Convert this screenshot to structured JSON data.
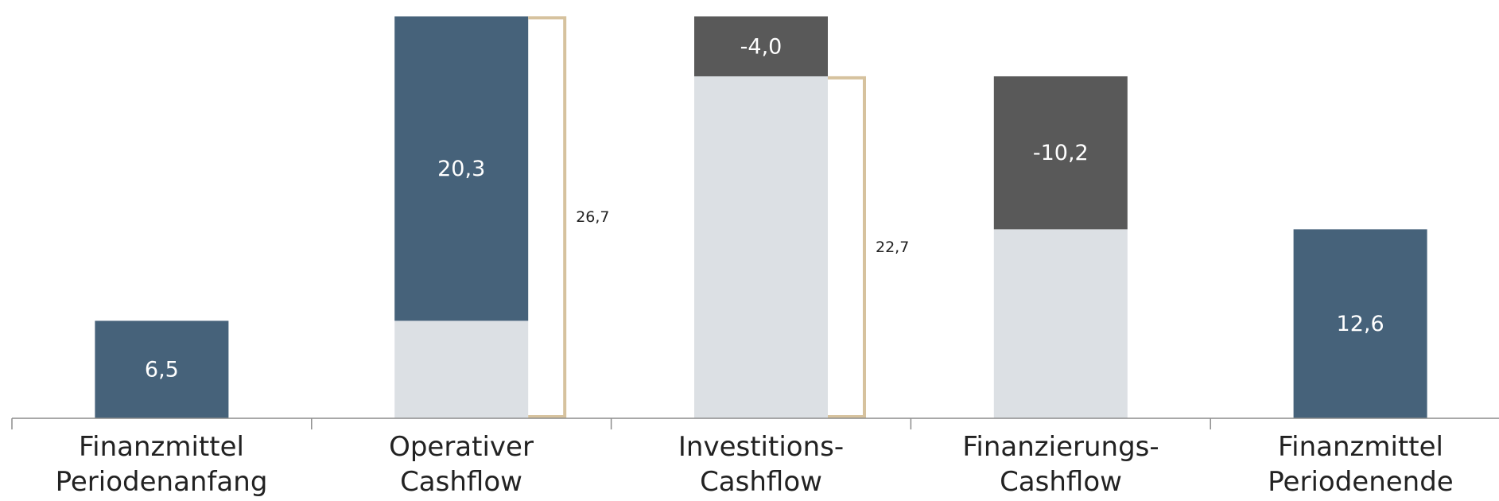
{
  "chart_data": {
    "type": "bar",
    "subtype": "waterfall",
    "categories": [
      "Finanzmittel\nPeriodenanfang",
      "Operativer\nCashflow",
      "Investitions-\nCashflow",
      "Finanzierungs-\nCashflow",
      "Finanzmittel\nPeriodenende"
    ],
    "values": [
      6.5,
      20.3,
      -4.0,
      -10.2,
      12.6
    ],
    "value_labels": [
      "6,5",
      "20,3",
      "-4,0",
      "-10,2",
      "12,6"
    ],
    "brackets": [
      {
        "between": [
          "Operativer Cashflow",
          "Investitions-Cashflow"
        ],
        "value": 26.7,
        "label": "26,7"
      },
      {
        "between": [
          "Investitions-Cashflow",
          "Finanzierungs-Cashflow"
        ],
        "value": 22.7,
        "label": "22,7"
      }
    ],
    "ylim": [
      0,
      27.2
    ],
    "grid": false,
    "legend": "none",
    "colors": {
      "positive": "#46627a",
      "negative": "#595959",
      "base": "#dce0e4",
      "bracket": "#d6c29e",
      "axis": "#8c8c8c"
    }
  }
}
